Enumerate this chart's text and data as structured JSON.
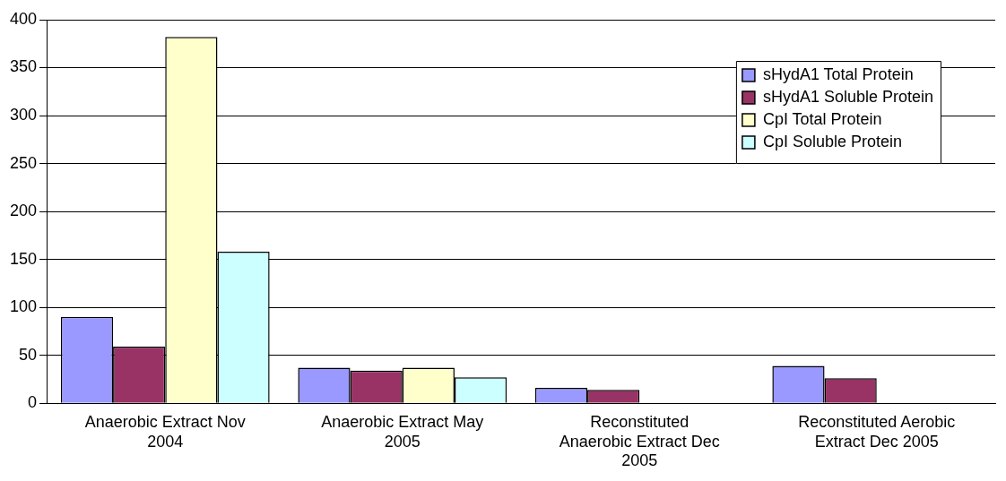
{
  "chart_data": {
    "type": "bar",
    "categories": [
      "Anaerobic Extract Nov 2004",
      "Anaerobic Extract May 2005",
      "Reconstituted Anaerobic Extract Dec 2005",
      "Reconstituted Aerobic Extract Dec 2005"
    ],
    "series": [
      {
        "name": "sHydA1 Total Protein",
        "color": "#9999ff",
        "values": [
          90,
          37,
          16,
          39
        ]
      },
      {
        "name": "sHydA1 Soluble Protein",
        "color": "#993366",
        "values": [
          59,
          34,
          14,
          26
        ]
      },
      {
        "name": "CpI Total Protein",
        "color": "#ffffcc",
        "values": [
          382,
          37,
          null,
          null
        ]
      },
      {
        "name": "CpI Soluble Protein",
        "color": "#ccffff",
        "values": [
          158,
          27,
          null,
          null
        ]
      }
    ],
    "ylim": [
      0,
      400
    ],
    "yticks": [
      0,
      50,
      100,
      150,
      200,
      250,
      300,
      350,
      400
    ],
    "grid": "y",
    "legend": "top right"
  }
}
